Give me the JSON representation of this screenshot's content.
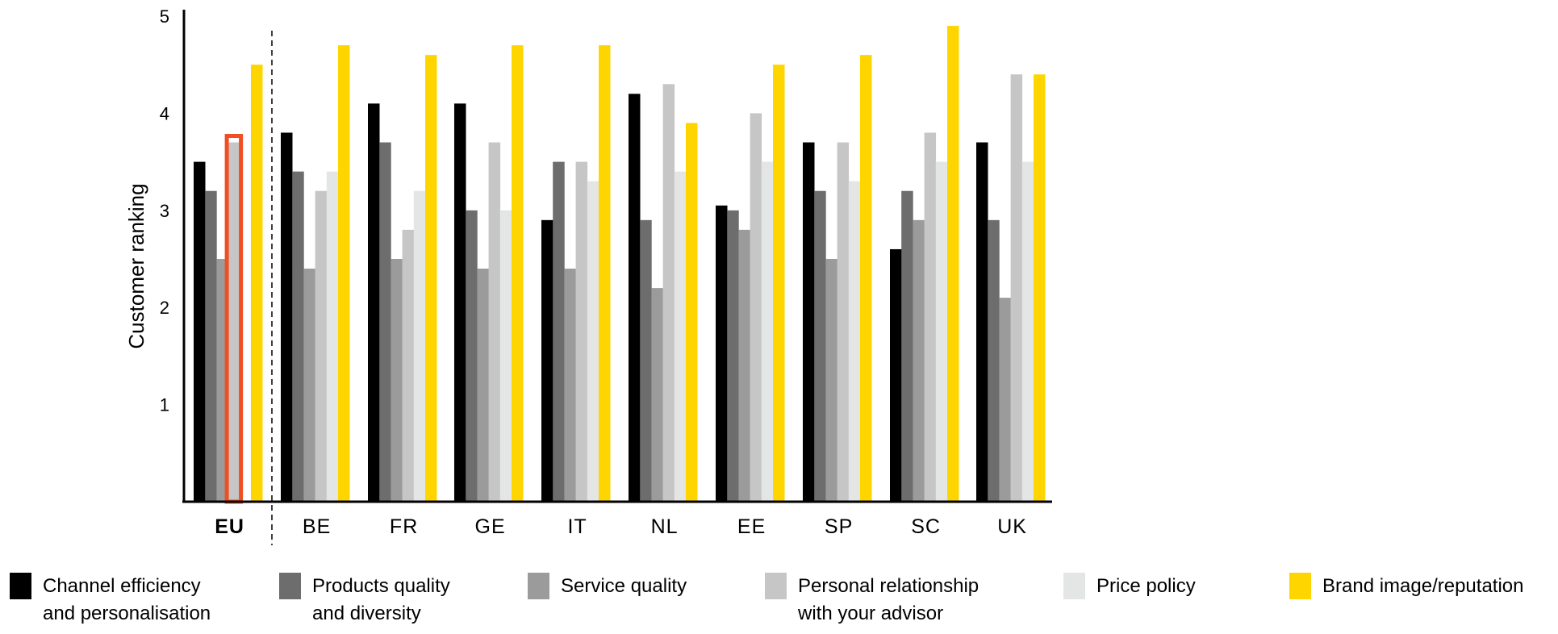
{
  "chart_data": {
    "type": "bar",
    "ylabel": "Customer ranking",
    "xlabel": "",
    "ylim": [
      0,
      5
    ],
    "yticks": [
      "1",
      "2",
      "3",
      "4",
      "5"
    ],
    "categories": [
      "EU",
      "BE",
      "FR",
      "GE",
      "IT",
      "NL",
      "EE",
      "SP",
      "SC",
      "UK"
    ],
    "highlighted_category": "EU",
    "highlighted_bar": {
      "category": "EU",
      "series_index": 3
    },
    "highlight_color": "#f04e23",
    "series": [
      {
        "name": "Channel efficiency and personalisation",
        "color": "#000000",
        "values": [
          3.5,
          3.8,
          4.1,
          4.1,
          2.9,
          4.2,
          3.05,
          3.7,
          2.6,
          3.7
        ]
      },
      {
        "name": "Products quality and diversity",
        "color": "#6d6d6d",
        "values": [
          3.2,
          3.4,
          3.7,
          3.0,
          3.5,
          2.9,
          3.0,
          3.2,
          3.2,
          2.9
        ]
      },
      {
        "name": "Service quality",
        "color": "#9b9b9b",
        "values": [
          2.5,
          2.4,
          2.5,
          2.4,
          2.4,
          2.2,
          2.8,
          2.5,
          2.9,
          2.1
        ]
      },
      {
        "name": "Personal relationship with your advisor",
        "color": "#c6c6c6",
        "values": [
          3.7,
          3.2,
          2.8,
          3.7,
          3.5,
          4.3,
          4.0,
          3.7,
          3.8,
          4.4
        ]
      },
      {
        "name": "Price policy",
        "color": "#e4e5e5",
        "values": [
          null,
          3.4,
          3.2,
          3.0,
          3.3,
          3.4,
          3.5,
          3.3,
          3.5,
          3.5
        ]
      },
      {
        "name": "Brand image/reputation",
        "color": "#ffd500",
        "values": [
          4.5,
          4.7,
          4.6,
          4.7,
          4.7,
          3.9,
          4.5,
          4.6,
          4.9,
          4.4
        ]
      }
    ],
    "legend": [
      {
        "lines": [
          "Channel efficiency",
          "and personalisation"
        ],
        "color": "#000000"
      },
      {
        "lines": [
          "Products quality",
          "and diversity"
        ],
        "color": "#6d6d6d"
      },
      {
        "lines": [
          "Service quality"
        ],
        "color": "#9b9b9b"
      },
      {
        "lines": [
          "Personal relationship",
          "with your advisor"
        ],
        "color": "#c6c6c6"
      },
      {
        "lines": [
          "Price policy"
        ],
        "color": "#e4e5e5"
      },
      {
        "lines": [
          "Brand image/reputation"
        ],
        "color": "#ffd500"
      }
    ]
  }
}
